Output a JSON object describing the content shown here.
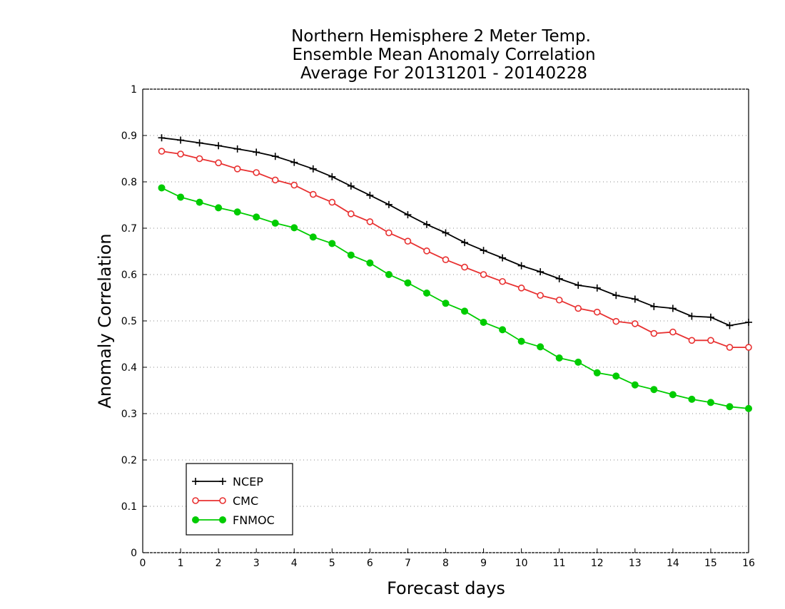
{
  "chart_data": {
    "type": "line",
    "title": [
      "Northern Hemisphere 2 Meter Temp.",
      "Ensemble Mean Anomaly Correlation",
      "Average For 20131201 - 20140228"
    ],
    "xlabel": "Forecast days",
    "ylabel": "Anomaly Correlation",
    "xlim": [
      0,
      16
    ],
    "ylim": [
      0,
      1
    ],
    "x_ticks": [
      0,
      1,
      2,
      3,
      4,
      5,
      6,
      7,
      8,
      9,
      10,
      11,
      12,
      13,
      14,
      15,
      16
    ],
    "y_ticks": [
      0,
      0.1,
      0.2,
      0.3,
      0.4,
      0.5,
      0.6,
      0.7,
      0.8,
      0.9,
      1
    ],
    "grid": "horizontal dotted",
    "legend_position": "bottom-left",
    "x": [
      0.5,
      1,
      1.5,
      2,
      2.5,
      3,
      3.5,
      4,
      4.5,
      5,
      5.5,
      6,
      6.5,
      7,
      7.5,
      8,
      8.5,
      9,
      9.5,
      10,
      10.5,
      11,
      11.5,
      12,
      12.5,
      13,
      13.5,
      14,
      14.5,
      15,
      15.5,
      16
    ],
    "series": [
      {
        "name": "NCEP",
        "color": "#000000",
        "marker": "plus",
        "values": [
          0.895,
          0.89,
          0.884,
          0.878,
          0.871,
          0.864,
          0.855,
          0.842,
          0.828,
          0.811,
          0.791,
          0.771,
          0.751,
          0.729,
          0.708,
          0.69,
          0.669,
          0.652,
          0.636,
          0.619,
          0.606,
          0.591,
          0.577,
          0.571,
          0.555,
          0.547,
          0.531,
          0.527,
          0.51,
          0.508,
          0.49,
          0.497
        ]
      },
      {
        "name": "CMC",
        "color": "#e83030",
        "marker": "open-circle",
        "values": [
          0.866,
          0.86,
          0.85,
          0.841,
          0.828,
          0.82,
          0.804,
          0.793,
          0.773,
          0.756,
          0.731,
          0.714,
          0.69,
          0.672,
          0.651,
          0.632,
          0.616,
          0.6,
          0.585,
          0.571,
          0.555,
          0.545,
          0.527,
          0.519,
          0.499,
          0.494,
          0.473,
          0.476,
          0.458,
          0.458,
          0.443,
          0.443
        ]
      },
      {
        "name": "FNMOC",
        "color": "#00cc00",
        "marker": "filled-circle",
        "values": [
          0.787,
          0.767,
          0.756,
          0.744,
          0.735,
          0.724,
          0.711,
          0.701,
          0.681,
          0.667,
          0.642,
          0.625,
          0.6,
          0.582,
          0.56,
          0.538,
          0.521,
          0.497,
          0.481,
          0.456,
          0.444,
          0.42,
          0.411,
          0.388,
          0.381,
          0.362,
          0.352,
          0.341,
          0.331,
          0.324,
          0.315,
          0.311
        ]
      }
    ]
  }
}
